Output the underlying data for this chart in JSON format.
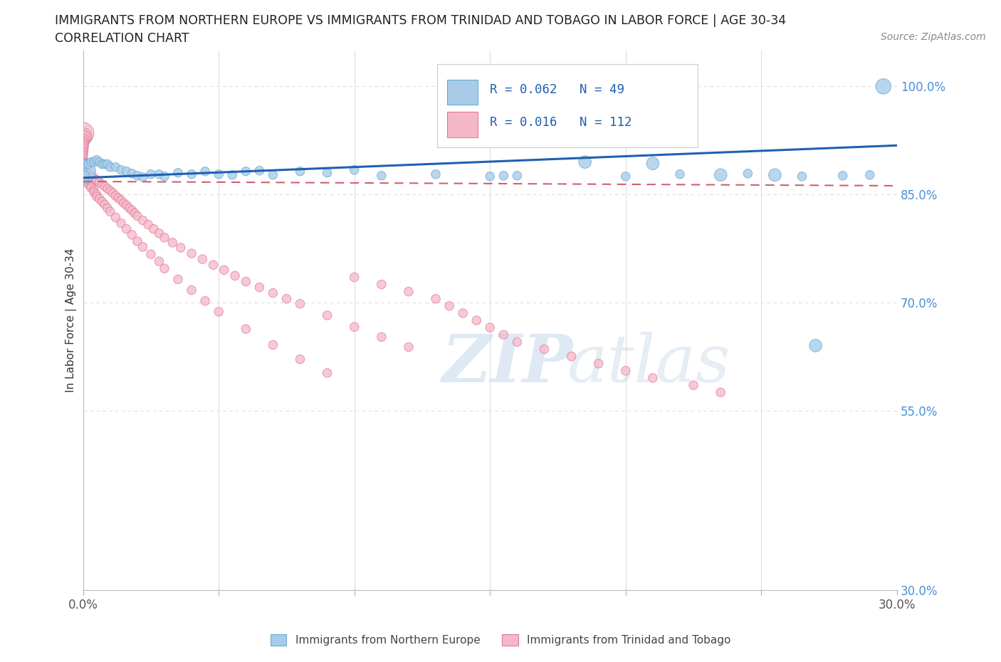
{
  "title_line1": "IMMIGRANTS FROM NORTHERN EUROPE VS IMMIGRANTS FROM TRINIDAD AND TOBAGO IN LABOR FORCE | AGE 30-34",
  "title_line2": "CORRELATION CHART",
  "source_text": "Source: ZipAtlas.com",
  "ylabel": "In Labor Force | Age 30-34",
  "xlim": [
    0.0,
    0.3
  ],
  "ylim": [
    0.3,
    1.05
  ],
  "blue_color": "#a8cce8",
  "pink_color": "#f5b8c8",
  "blue_edge": "#6aaad4",
  "pink_edge": "#e07898",
  "trendline_blue": "#2060b0",
  "trendline_pink": "#d06070",
  "blue_trend": [
    0.873,
    0.918
  ],
  "pink_trend": [
    0.868,
    0.862
  ],
  "blue_x": [
    0.0,
    0.0,
    0.001,
    0.002,
    0.003,
    0.004,
    0.005,
    0.006,
    0.007,
    0.008,
    0.009,
    0.01,
    0.012,
    0.014,
    0.016,
    0.018,
    0.02,
    0.022,
    0.025,
    0.028,
    0.03,
    0.035,
    0.04,
    0.045,
    0.05,
    0.055,
    0.06,
    0.065,
    0.07,
    0.08,
    0.09,
    0.1,
    0.11,
    0.13,
    0.15,
    0.155,
    0.16,
    0.185,
    0.2,
    0.21,
    0.22,
    0.235,
    0.245,
    0.255,
    0.265,
    0.27,
    0.28,
    0.29,
    0.295
  ],
  "blue_y": [
    0.882,
    0.875,
    0.892,
    0.892,
    0.895,
    0.895,
    0.898,
    0.895,
    0.892,
    0.892,
    0.892,
    0.888,
    0.888,
    0.884,
    0.882,
    0.879,
    0.876,
    0.874,
    0.878,
    0.878,
    0.875,
    0.88,
    0.878,
    0.882,
    0.878,
    0.877,
    0.882,
    0.883,
    0.877,
    0.882,
    0.88,
    0.884,
    0.876,
    0.878,
    0.875,
    0.876,
    0.876,
    0.895,
    0.875,
    0.893,
    0.878,
    0.877,
    0.879,
    0.877,
    0.875,
    0.64,
    0.876,
    0.877,
    1.0
  ],
  "blue_sizes": [
    800,
    200,
    100,
    100,
    100,
    100,
    100,
    100,
    100,
    100,
    100,
    100,
    100,
    100,
    100,
    100,
    100,
    100,
    100,
    100,
    100,
    100,
    100,
    100,
    100,
    100,
    100,
    100,
    100,
    100,
    100,
    100,
    100,
    100,
    100,
    100,
    100,
    200,
    100,
    200,
    100,
    200,
    100,
    200,
    100,
    200,
    100,
    100,
    300
  ],
  "pink_x": [
    0.0,
    0.0,
    0.0,
    0.0,
    0.0,
    0.0,
    0.0,
    0.0,
    0.0,
    0.0,
    0.0,
    0.0,
    0.0,
    0.0,
    0.0,
    0.0,
    0.0,
    0.0,
    0.0,
    0.0,
    0.002,
    0.003,
    0.004,
    0.005,
    0.006,
    0.007,
    0.008,
    0.009,
    0.01,
    0.011,
    0.012,
    0.013,
    0.014,
    0.015,
    0.016,
    0.017,
    0.018,
    0.019,
    0.02,
    0.022,
    0.024,
    0.026,
    0.028,
    0.03,
    0.033,
    0.036,
    0.04,
    0.044,
    0.048,
    0.052,
    0.056,
    0.06,
    0.065,
    0.07,
    0.075,
    0.08,
    0.09,
    0.1,
    0.11,
    0.12,
    0.0,
    0.0,
    0.0,
    0.001,
    0.001,
    0.002,
    0.002,
    0.003,
    0.003,
    0.004,
    0.004,
    0.005,
    0.005,
    0.006,
    0.007,
    0.008,
    0.009,
    0.01,
    0.012,
    0.014,
    0.016,
    0.018,
    0.02,
    0.022,
    0.025,
    0.028,
    0.03,
    0.035,
    0.04,
    0.045,
    0.05,
    0.06,
    0.07,
    0.08,
    0.09,
    0.1,
    0.11,
    0.12,
    0.13,
    0.135,
    0.14,
    0.145,
    0.15,
    0.155,
    0.16,
    0.17,
    0.18,
    0.19,
    0.2,
    0.21,
    0.225,
    0.235
  ],
  "pink_y": [
    0.935,
    0.93,
    0.928,
    0.925,
    0.922,
    0.92,
    0.918,
    0.915,
    0.913,
    0.91,
    0.908,
    0.905,
    0.903,
    0.9,
    0.897,
    0.895,
    0.893,
    0.89,
    0.887,
    0.882,
    0.878,
    0.876,
    0.873,
    0.87,
    0.867,
    0.864,
    0.861,
    0.858,
    0.855,
    0.852,
    0.848,
    0.845,
    0.842,
    0.838,
    0.835,
    0.831,
    0.828,
    0.824,
    0.82,
    0.814,
    0.808,
    0.802,
    0.796,
    0.79,
    0.783,
    0.776,
    0.768,
    0.76,
    0.752,
    0.745,
    0.737,
    0.729,
    0.721,
    0.713,
    0.705,
    0.698,
    0.682,
    0.666,
    0.652,
    0.638,
    0.878,
    0.875,
    0.872,
    0.87,
    0.868,
    0.866,
    0.864,
    0.861,
    0.859,
    0.856,
    0.853,
    0.85,
    0.847,
    0.844,
    0.84,
    0.836,
    0.831,
    0.826,
    0.818,
    0.81,
    0.802,
    0.794,
    0.785,
    0.777,
    0.767,
    0.757,
    0.747,
    0.732,
    0.717,
    0.702,
    0.687,
    0.663,
    0.641,
    0.621,
    0.602,
    0.735,
    0.725,
    0.715,
    0.705,
    0.695,
    0.685,
    0.675,
    0.665,
    0.655,
    0.645,
    0.635,
    0.625,
    0.615,
    0.605,
    0.595,
    0.585,
    0.575
  ],
  "pink_sizes": [
    600,
    400,
    300,
    200,
    180,
    160,
    150,
    140,
    130,
    120,
    110,
    105,
    100,
    100,
    100,
    100,
    100,
    100,
    100,
    100,
    100,
    100,
    100,
    100,
    100,
    100,
    100,
    100,
    100,
    100,
    100,
    100,
    100,
    100,
    100,
    100,
    100,
    100,
    100,
    100,
    100,
    100,
    100,
    100,
    100,
    100,
    100,
    100,
    100,
    100,
    100,
    100,
    100,
    100,
    100,
    100,
    100,
    100,
    100,
    100,
    100,
    100,
    100,
    100,
    100,
    100,
    100,
    100,
    100,
    100,
    100,
    100,
    100,
    100,
    100,
    100,
    100,
    100,
    100,
    100,
    100,
    100,
    100,
    100,
    100,
    100,
    100,
    100,
    100,
    100,
    100,
    100,
    100,
    100,
    100,
    100,
    100,
    100,
    100,
    100,
    100,
    100,
    100,
    100,
    100,
    100,
    100,
    100,
    100,
    100,
    100,
    100
  ]
}
